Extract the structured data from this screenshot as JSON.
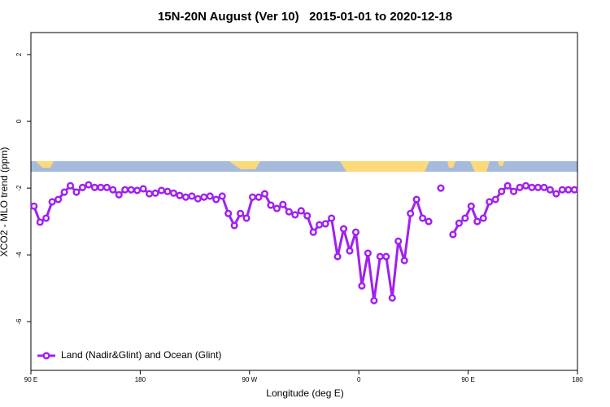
{
  "chart_data": {
    "type": "line",
    "title": "15N-20N August (Ver 10)   2015-01-01 to 2020-12-18",
    "xlabel": "Longitude (deg E)",
    "ylabel": "XCO2 - MLO trend (ppm)",
    "x": [
      92.5,
      97.5,
      102.5,
      107.5,
      112.5,
      117.5,
      122.5,
      127.5,
      132.5,
      137.5,
      142.5,
      147.5,
      152.5,
      157.5,
      162.5,
      167.5,
      172.5,
      177.5,
      182.5,
      187.5,
      192.5,
      197.5,
      202.5,
      207.5,
      212.5,
      217.5,
      222.5,
      227.5,
      232.5,
      237.5,
      242.5,
      247.5,
      252.5,
      257.5,
      262.5,
      267.5,
      272.5,
      277.5,
      282.5,
      287.5,
      292.5,
      297.5,
      302.5,
      307.5,
      312.5,
      317.5,
      322.5,
      327.5,
      332.5,
      337.5,
      342.5,
      347.5,
      352.5,
      357.5,
      362.5,
      367.5,
      372.5,
      377.5,
      382.5,
      387.5,
      392.5,
      397.5,
      402.5,
      407.5,
      412.5,
      417.5,
      422.5,
      427.5,
      432.5,
      437.5,
      442.5,
      447.5,
      452.5,
      457.5,
      462.5,
      467.5,
      472.5,
      477.5,
      482.5,
      487.5,
      492.5,
      497.5,
      502.5,
      507.5,
      512.5,
      517.5,
      522.5,
      527.5,
      532.5,
      537.5
    ],
    "series": [
      {
        "name": "Land (Nadir&Glint) and Ocean (Glint)",
        "color": "#a020f0",
        "values": [
          -2.54,
          -3.02,
          -2.9,
          -2.41,
          -2.34,
          -2.12,
          -1.93,
          -2.12,
          -1.98,
          -1.9,
          -1.98,
          -1.98,
          -1.98,
          -2.05,
          -2.2,
          -2.05,
          -2.05,
          -2.07,
          -2.02,
          -2.17,
          -2.15,
          -2.07,
          -2.1,
          -2.15,
          -2.22,
          -2.27,
          -2.24,
          -2.32,
          -2.27,
          -2.24,
          -2.34,
          -2.24,
          -2.76,
          -3.12,
          -2.76,
          -2.9,
          -2.27,
          -2.27,
          -2.17,
          -2.51,
          -2.61,
          -2.49,
          -2.71,
          -2.8,
          -2.68,
          -2.83,
          -3.32,
          -3.1,
          -3.07,
          -2.9,
          -4.05,
          -3.22,
          -3.88,
          -3.32,
          -4.93,
          -3.95,
          -5.37,
          -4.05,
          -4.05,
          -5.29,
          -3.59,
          -4.17,
          -2.76,
          -2.34,
          -2.9,
          -3.0,
          null,
          -2.0,
          null,
          -3.39,
          -3.05,
          -2.9,
          -2.54,
          -3.0,
          -2.9,
          -2.41,
          -2.34,
          -2.1,
          -1.93,
          -2.1,
          -1.98,
          -1.93,
          -1.98,
          -1.98,
          -1.98,
          -2.05,
          -2.17,
          -2.05,
          -2.05,
          -2.05
        ]
      }
    ],
    "xlim": [
      90,
      540
    ],
    "xticks": [
      {
        "value": 90,
        "label": "90 E"
      },
      180,
      {
        "value": 270,
        "label": "90 W"
      },
      {
        "value": 360,
        "label": "0"
      },
      {
        "value": 450,
        "label": "90 E"
      },
      {
        "value": 540,
        "label": "180"
      }
    ],
    "ylim": [
      -7.46,
      2.66
    ],
    "yticks": [
      -6,
      -4,
      -2,
      0,
      2
    ],
    "legend": "bottom-left"
  }
}
